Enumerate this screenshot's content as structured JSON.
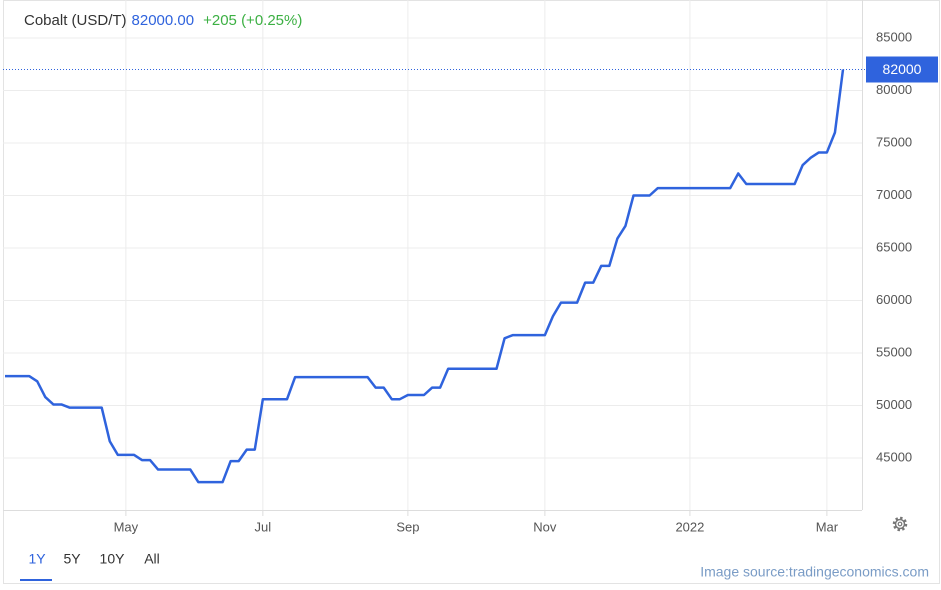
{
  "chart_data": {
    "type": "line",
    "title": "Cobalt (USD/T)",
    "price": "82000.00",
    "change": "+205 (+0.25%)",
    "color": "#2f63dd",
    "grid": true,
    "categories": [
      null,
      null,
      null,
      null,
      null,
      null,
      null,
      null,
      null,
      null,
      null,
      null,
      null,
      null,
      null,
      "May",
      null,
      null,
      null,
      null,
      null,
      null,
      null,
      null,
      null,
      null,
      null,
      null,
      null,
      null,
      null,
      null,
      "Jul",
      null,
      null,
      null,
      null,
      null,
      null,
      null,
      null,
      null,
      null,
      null,
      null,
      null,
      null,
      null,
      null,
      null,
      "Sep",
      null,
      null,
      null,
      null,
      null,
      null,
      null,
      null,
      null,
      null,
      null,
      null,
      null,
      null,
      null,
      null,
      "Nov",
      null,
      null,
      null,
      null,
      null,
      null,
      null,
      null,
      null,
      null,
      null,
      null,
      null,
      null,
      null,
      null,
      null,
      "2022",
      null,
      null,
      null,
      null,
      null,
      null,
      null,
      null,
      null,
      null,
      null,
      null,
      null,
      null,
      null,
      null,
      "Mar",
      null,
      null
    ],
    "values": [
      52800,
      52800,
      52800,
      52800,
      52300,
      50800,
      50100,
      50100,
      49800,
      49800,
      49800,
      49800,
      49800,
      46600,
      45300,
      45300,
      45300,
      44800,
      44800,
      43900,
      43900,
      43900,
      43900,
      43900,
      42700,
      42700,
      42700,
      42700,
      44700,
      44700,
      45800,
      45800,
      50600,
      50600,
      50600,
      50600,
      52700,
      52700,
      52700,
      52700,
      52700,
      52700,
      52700,
      52700,
      52700,
      52700,
      51700,
      51700,
      50600,
      50600,
      51000,
      51000,
      51000,
      51700,
      51700,
      53500,
      53500,
      53500,
      53500,
      53500,
      53500,
      53500,
      56400,
      56700,
      56700,
      56700,
      56700,
      56700,
      58500,
      59800,
      59800,
      59800,
      61700,
      61700,
      63300,
      63300,
      65900,
      67100,
      70000,
      70000,
      70000,
      70700,
      70700,
      70700,
      70700,
      70700,
      70700,
      70700,
      70700,
      70700,
      70700,
      72100,
      71100,
      71100,
      71100,
      71100,
      71100,
      71100,
      71100,
      72900,
      73600,
      74100,
      74100,
      76000,
      82000
    ],
    "ylim": [
      40000,
      88000
    ],
    "yticks": [
      45000,
      50000,
      55000,
      60000,
      65000,
      70000,
      75000,
      80000,
      85000
    ]
  },
  "controls": [
    "1Y",
    "5Y",
    "10Y",
    "All"
  ],
  "source": "Image source:tradingeconomics.com"
}
